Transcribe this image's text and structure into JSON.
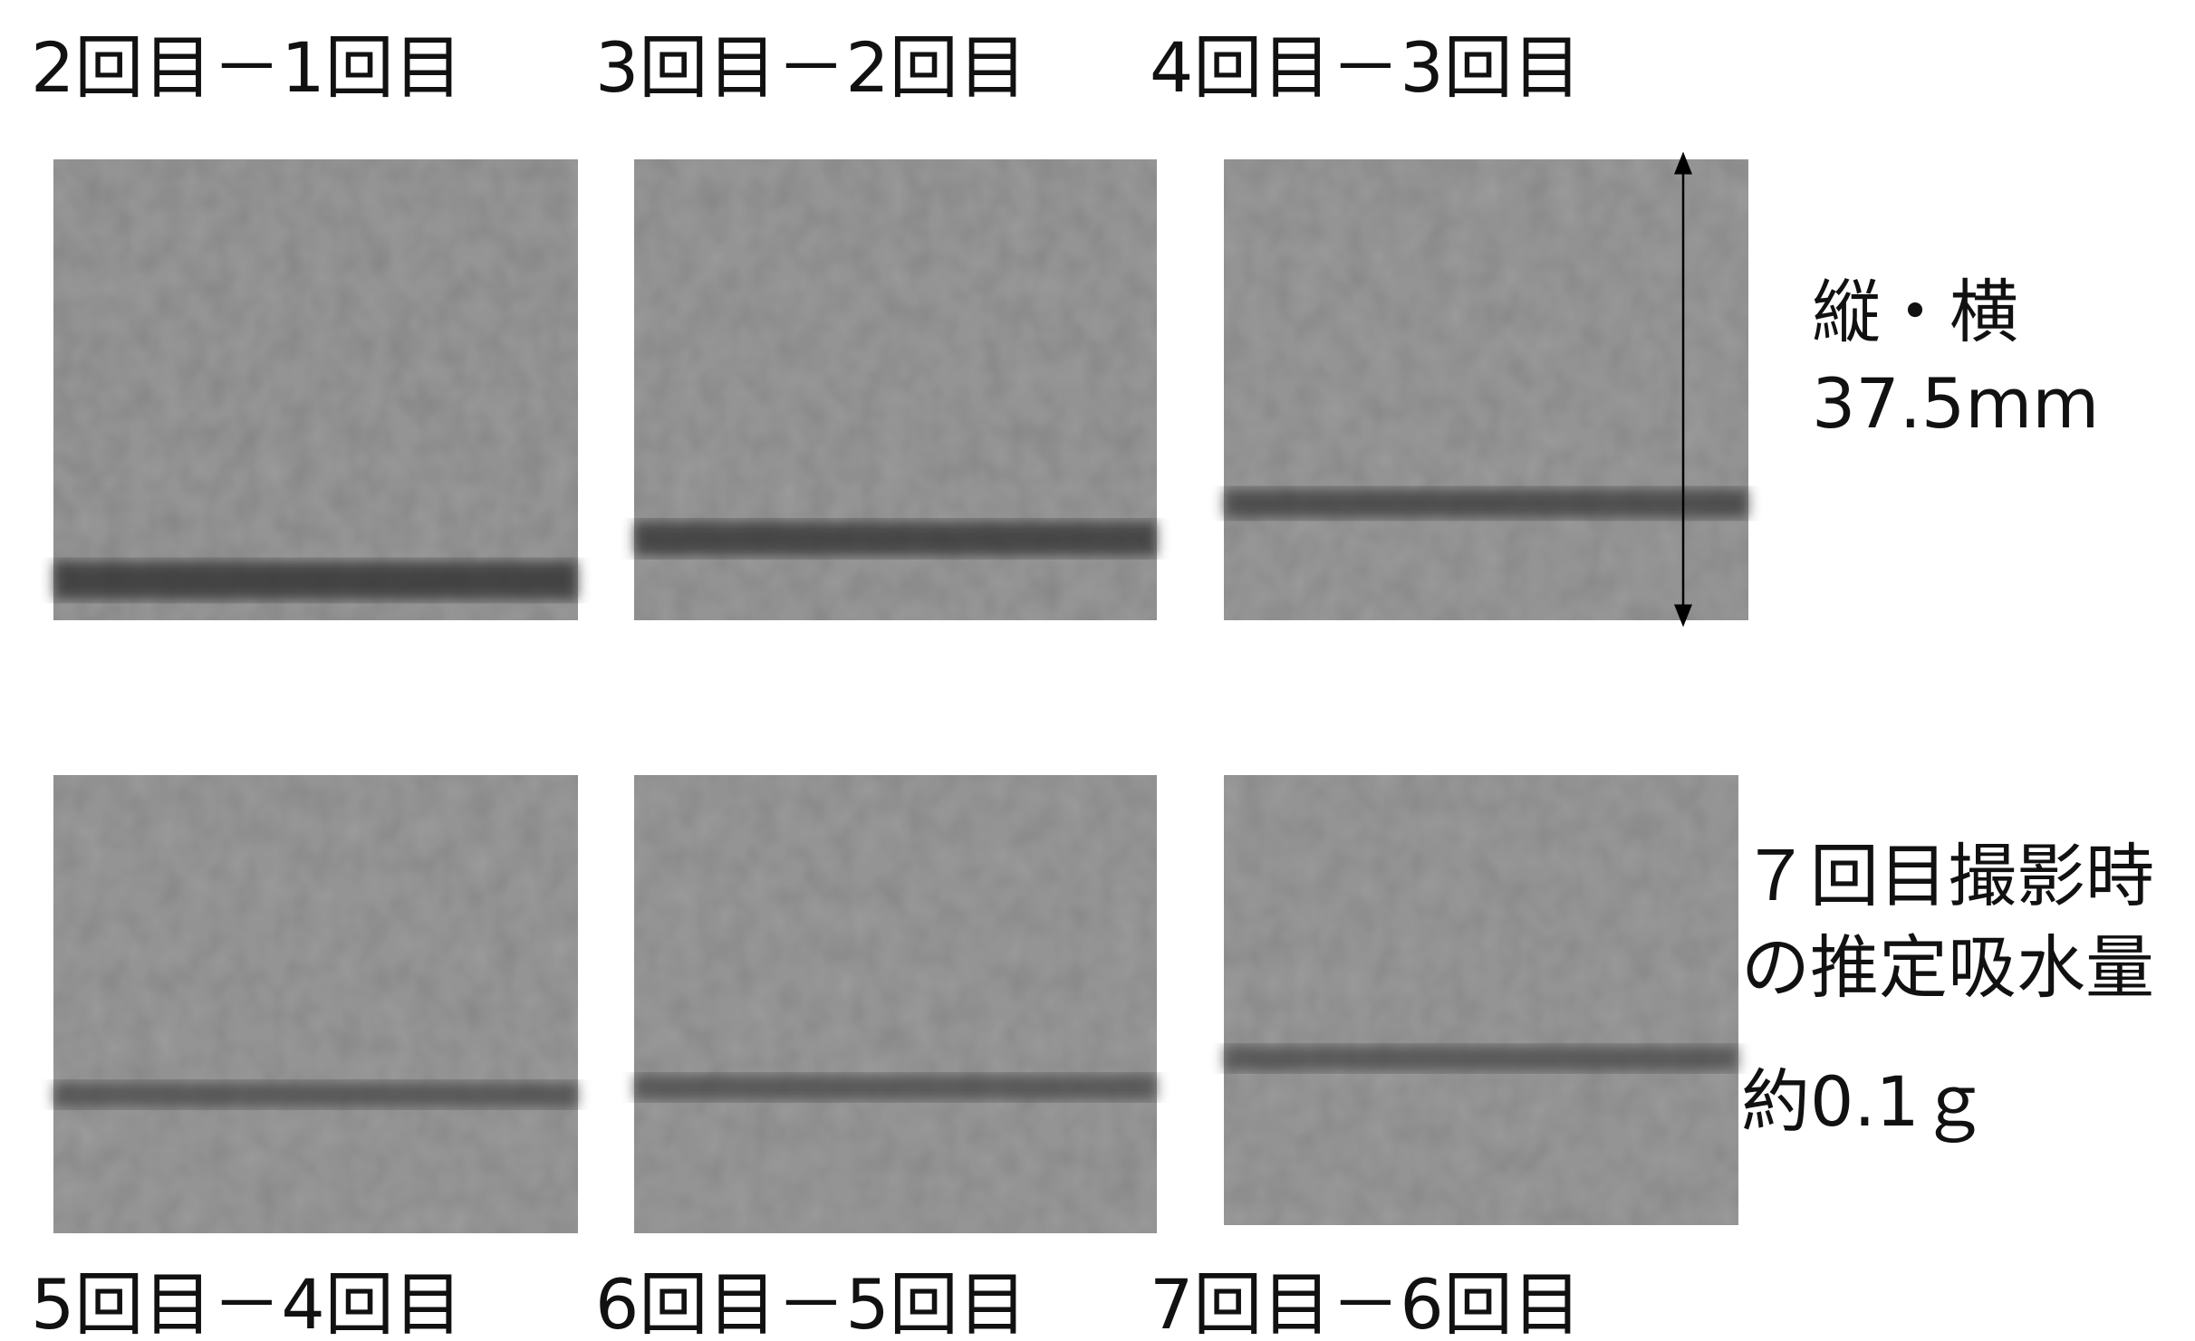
{
  "panels": [
    {
      "label": "2回目－1回目"
    },
    {
      "label": "3回目－2回目"
    },
    {
      "label": "4回目－3回目"
    },
    {
      "label": "5回目－4回目"
    },
    {
      "label": "6回目－5回目"
    },
    {
      "label": "7回目－6回目"
    }
  ],
  "annotations": {
    "size": [
      "縦・横",
      "37.5mm"
    ],
    "water": [
      "７回目撮影時",
      "の推定吸水量",
      "約0.1ｇ"
    ]
  }
}
